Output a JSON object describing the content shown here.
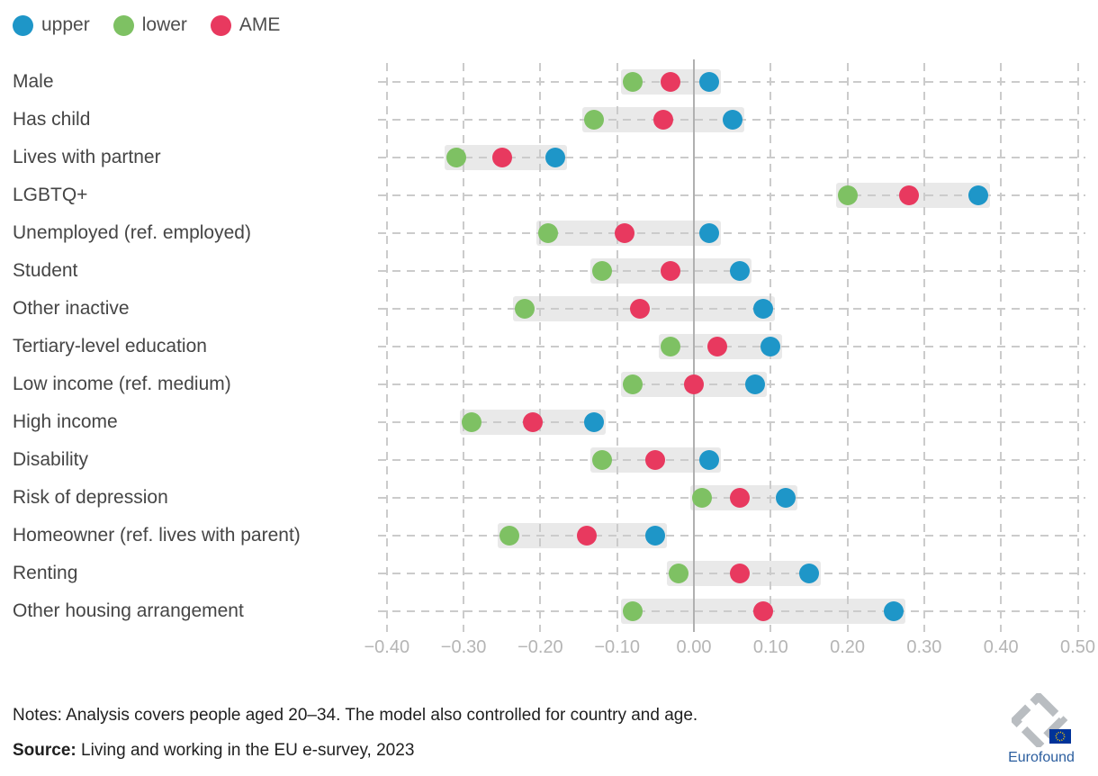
{
  "legend": [
    {
      "name": "upper",
      "label": "upper",
      "color": "#1e96c8"
    },
    {
      "name": "lower",
      "label": "lower",
      "color": "#7ec163"
    },
    {
      "name": "AME",
      "label": "AME",
      "color": "#e8395f"
    }
  ],
  "chart_data": {
    "type": "scatter",
    "subtype": "dot-range-plot",
    "title": "",
    "xlabel": "",
    "ylabel": "",
    "categories": [
      "Male",
      "Has child",
      "Lives with partner",
      "LGBTQ+",
      "Unemployed (ref. employed)",
      "Student",
      "Other inactive",
      "Tertiary-level education",
      "Low income (ref. medium)",
      "High income",
      "Disability",
      "Risk of depression",
      "Homeowner (ref. lives with parent)",
      "Renting",
      "Other housing arrangement"
    ],
    "series": [
      {
        "name": "upper",
        "color": "#1e96c8",
        "values": [
          0.02,
          0.05,
          -0.18,
          0.37,
          0.02,
          0.06,
          0.09,
          0.1,
          0.08,
          -0.13,
          0.02,
          0.12,
          -0.05,
          0.15,
          0.26
        ]
      },
      {
        "name": "lower",
        "color": "#7ec163",
        "values": [
          -0.08,
          -0.13,
          -0.31,
          0.2,
          -0.19,
          -0.12,
          -0.22,
          -0.03,
          -0.08,
          -0.29,
          -0.12,
          0.01,
          -0.24,
          -0.02,
          -0.08
        ]
      },
      {
        "name": "AME",
        "color": "#e8395f",
        "values": [
          -0.03,
          -0.04,
          -0.25,
          0.28,
          -0.09,
          -0.03,
          -0.07,
          0.03,
          0.0,
          -0.21,
          -0.05,
          0.06,
          -0.14,
          0.06,
          0.09
        ]
      }
    ],
    "x_tick_values": [
      -0.4,
      -0.3,
      -0.2,
      -0.1,
      0.0,
      0.1,
      0.2,
      0.3,
      0.4,
      0.5
    ],
    "x_tick_labels": [
      "−0.40",
      "−0.30",
      "−0.20",
      "−0.10",
      "0.00",
      "0.10",
      "0.20",
      "0.30",
      "0.40",
      "0.50"
    ],
    "xlim": [
      -0.41,
      0.51
    ],
    "grid": true,
    "zero_line": true,
    "legend_position": "top-left",
    "band_color": "#e9e9e9",
    "grid_color": "#cbcbcb"
  },
  "footer": {
    "notes": "Notes: Analysis covers people aged 20–34. The model also controlled for country and age.",
    "source_label": "Source:",
    "source_text": " Living and working in the EU e-survey, 2023"
  },
  "logo": {
    "text": "Eurofound"
  }
}
